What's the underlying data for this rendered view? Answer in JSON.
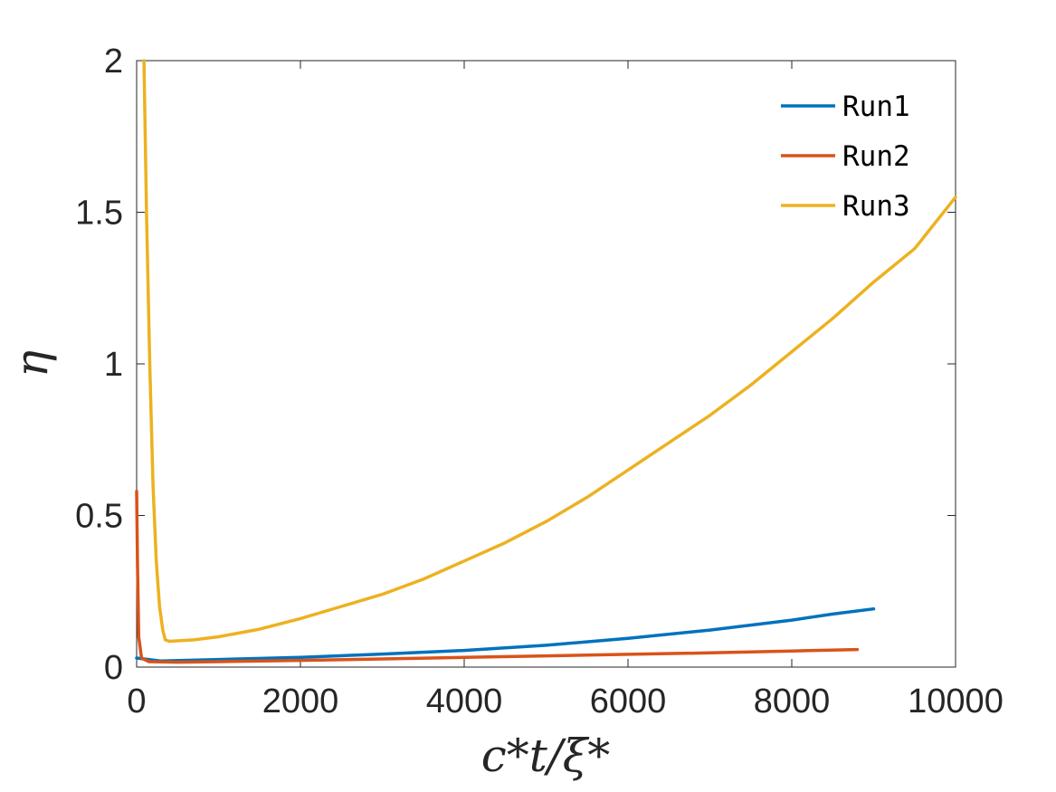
{
  "chart_data": {
    "type": "line",
    "xlabel": "c*t/ξ*",
    "ylabel": "η",
    "xlim": [
      0,
      10000
    ],
    "ylim": [
      0,
      2
    ],
    "x_ticks": [
      0,
      2000,
      4000,
      6000,
      8000,
      10000
    ],
    "x_tick_labels": [
      "0",
      "2000",
      "4000",
      "6000",
      "8000",
      "10000"
    ],
    "y_ticks": [
      0,
      0.5,
      1,
      1.5,
      2
    ],
    "y_tick_labels": [
      "0",
      "0.5",
      "1",
      "1.5",
      "2"
    ],
    "grid": false,
    "legend_position": "top-right",
    "series": [
      {
        "name": "Run1",
        "color": "#0072BD",
        "points": [
          [
            0,
            0.03
          ],
          [
            300,
            0.02
          ],
          [
            1000,
            0.025
          ],
          [
            2000,
            0.032
          ],
          [
            3000,
            0.043
          ],
          [
            4000,
            0.055
          ],
          [
            5000,
            0.072
          ],
          [
            6000,
            0.095
          ],
          [
            7000,
            0.122
          ],
          [
            8000,
            0.155
          ],
          [
            8500,
            0.175
          ],
          [
            9000,
            0.192
          ]
        ]
      },
      {
        "name": "Run2",
        "color": "#D95319",
        "points": [
          [
            0,
            0.58
          ],
          [
            10,
            0.35
          ],
          [
            25,
            0.1
          ],
          [
            60,
            0.03
          ],
          [
            150,
            0.018
          ],
          [
            500,
            0.016
          ],
          [
            1000,
            0.018
          ],
          [
            2000,
            0.022
          ],
          [
            3000,
            0.027
          ],
          [
            4000,
            0.032
          ],
          [
            5000,
            0.037
          ],
          [
            6000,
            0.042
          ],
          [
            7000,
            0.047
          ],
          [
            8000,
            0.053
          ],
          [
            8800,
            0.058
          ]
        ]
      },
      {
        "name": "Run3",
        "color": "#EDB120",
        "points": [
          [
            90,
            2.0
          ],
          [
            120,
            1.5
          ],
          [
            160,
            1.0
          ],
          [
            200,
            0.6
          ],
          [
            240,
            0.35
          ],
          [
            280,
            0.2
          ],
          [
            320,
            0.12
          ],
          [
            350,
            0.09
          ],
          [
            400,
            0.085
          ],
          [
            700,
            0.09
          ],
          [
            1000,
            0.1
          ],
          [
            1500,
            0.125
          ],
          [
            2000,
            0.16
          ],
          [
            2500,
            0.2
          ],
          [
            3000,
            0.24
          ],
          [
            3500,
            0.29
          ],
          [
            4000,
            0.35
          ],
          [
            4500,
            0.41
          ],
          [
            5000,
            0.48
          ],
          [
            5500,
            0.56
          ],
          [
            6000,
            0.65
          ],
          [
            6500,
            0.74
          ],
          [
            7000,
            0.83
          ],
          [
            7500,
            0.93
          ],
          [
            8000,
            1.04
          ],
          [
            8500,
            1.15
          ],
          [
            9000,
            1.27
          ],
          [
            9500,
            1.38
          ],
          [
            10000,
            1.55
          ]
        ]
      }
    ]
  }
}
